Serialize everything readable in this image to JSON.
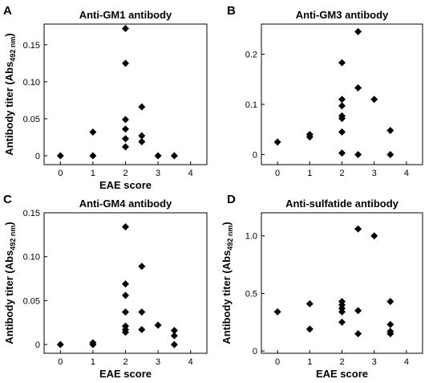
{
  "chart_data": [
    {
      "type": "scatter",
      "letter": "A",
      "title": "Anti-GM1 antibody",
      "xlabel": "EAE score",
      "ylabel_main": "Antibody titer (Abs",
      "ylabel_sub": "492 nm",
      "ylabel_end": ")",
      "xlim": [
        -0.5,
        4.5
      ],
      "ylim": [
        -0.012,
        0.178
      ],
      "xticks": [
        0,
        1,
        2,
        3,
        4
      ],
      "yticks": [
        0,
        0.05,
        0.1,
        0.15
      ],
      "ytick_labels": [
        "0",
        "0.05",
        "0.10",
        "0.15"
      ],
      "points": [
        {
          "x": 0,
          "y": 0
        },
        {
          "x": 1,
          "y": 0.032
        },
        {
          "x": 1,
          "y": 0
        },
        {
          "x": 2,
          "y": 0.172
        },
        {
          "x": 2,
          "y": 0.125
        },
        {
          "x": 2,
          "y": 0.049
        },
        {
          "x": 2,
          "y": 0.036
        },
        {
          "x": 2,
          "y": 0.023
        },
        {
          "x": 2,
          "y": 0.012
        },
        {
          "x": 2.5,
          "y": 0.066
        },
        {
          "x": 2.5,
          "y": 0.027
        },
        {
          "x": 2.5,
          "y": 0.019
        },
        {
          "x": 3,
          "y": 0
        },
        {
          "x": 3.5,
          "y": 0
        }
      ]
    },
    {
      "type": "scatter",
      "letter": "B",
      "title": "Anti-GM3 antibody",
      "xlabel": "",
      "ylabel_main": "",
      "ylabel_sub": "",
      "ylabel_end": "",
      "xlim": [
        -0.5,
        4.5
      ],
      "ylim": [
        -0.02,
        0.26
      ],
      "xticks": [
        0,
        1,
        2,
        3,
        4
      ],
      "yticks": [
        0,
        0.1,
        0.2
      ],
      "ytick_labels": [
        "0",
        "0.1",
        "0.2"
      ],
      "points": [
        {
          "x": 0,
          "y": 0.025
        },
        {
          "x": 1,
          "y": 0.04
        },
        {
          "x": 1,
          "y": 0.035
        },
        {
          "x": 2,
          "y": 0.183
        },
        {
          "x": 2,
          "y": 0.11
        },
        {
          "x": 2,
          "y": 0.097
        },
        {
          "x": 2,
          "y": 0.077
        },
        {
          "x": 2,
          "y": 0.072
        },
        {
          "x": 2,
          "y": 0.045
        },
        {
          "x": 2,
          "y": 0.003
        },
        {
          "x": 2.5,
          "y": 0.245
        },
        {
          "x": 2.5,
          "y": 0.133
        },
        {
          "x": 2.5,
          "y": 0
        },
        {
          "x": 3,
          "y": 0.11
        },
        {
          "x": 3.5,
          "y": 0.048
        },
        {
          "x": 3.5,
          "y": 0
        }
      ]
    },
    {
      "type": "scatter",
      "letter": "C",
      "title": "Anti-GM4 antibody",
      "xlabel": "EAE score",
      "ylabel_main": "Antibody titer (Abs",
      "ylabel_sub": "492 nm",
      "ylabel_end": ")",
      "xlim": [
        -0.5,
        4.5
      ],
      "ylim": [
        -0.01,
        0.15
      ],
      "xticks": [
        0,
        1,
        2,
        3,
        4
      ],
      "yticks": [
        0,
        0.05,
        0.1,
        0.15
      ],
      "ytick_labels": [
        "0",
        "0.05",
        "0.10",
        "0.15"
      ],
      "points": [
        {
          "x": 0,
          "y": 0
        },
        {
          "x": 1,
          "y": 0.002
        },
        {
          "x": 1,
          "y": 0
        },
        {
          "x": 2,
          "y": 0.134
        },
        {
          "x": 2,
          "y": 0.069
        },
        {
          "x": 2,
          "y": 0.056
        },
        {
          "x": 2,
          "y": 0.037
        },
        {
          "x": 2,
          "y": 0.021
        },
        {
          "x": 2,
          "y": 0.017
        },
        {
          "x": 2,
          "y": 0.014
        },
        {
          "x": 2.5,
          "y": 0.089
        },
        {
          "x": 2.5,
          "y": 0.037
        },
        {
          "x": 2.5,
          "y": 0.017
        },
        {
          "x": 3,
          "y": 0.022
        },
        {
          "x": 3.5,
          "y": 0.016
        },
        {
          "x": 3.5,
          "y": 0.01
        },
        {
          "x": 3.5,
          "y": 0
        }
      ]
    },
    {
      "type": "scatter",
      "letter": "D",
      "title": "Anti-sulfatide antibody",
      "xlabel": "EAE score",
      "ylabel_main": "Antibody titer (Abs",
      "ylabel_sub": "492 nm",
      "ylabel_end": ")",
      "xlim": [
        -0.5,
        4.5
      ],
      "ylim": [
        -0.02,
        1.2
      ],
      "xticks": [
        0,
        1,
        2,
        3,
        4
      ],
      "yticks": [
        0,
        0.5,
        1.0
      ],
      "ytick_labels": [
        "0",
        "0.5",
        "1.0"
      ],
      "points": [
        {
          "x": 0,
          "y": 0.34
        },
        {
          "x": 1,
          "y": 0.41
        },
        {
          "x": 1,
          "y": 0.19
        },
        {
          "x": 2,
          "y": 0.43
        },
        {
          "x": 2,
          "y": 0.4
        },
        {
          "x": 2,
          "y": 0.37
        },
        {
          "x": 2,
          "y": 0.34
        },
        {
          "x": 2,
          "y": 0.25
        },
        {
          "x": 2.5,
          "y": 1.06
        },
        {
          "x": 2.5,
          "y": 0.35
        },
        {
          "x": 2.5,
          "y": 0.15
        },
        {
          "x": 3,
          "y": 1.0
        },
        {
          "x": 3.5,
          "y": 0.43
        },
        {
          "x": 3.5,
          "y": 0.23
        },
        {
          "x": 3.5,
          "y": 0.17
        },
        {
          "x": 3.5,
          "y": 0.15
        }
      ]
    }
  ]
}
